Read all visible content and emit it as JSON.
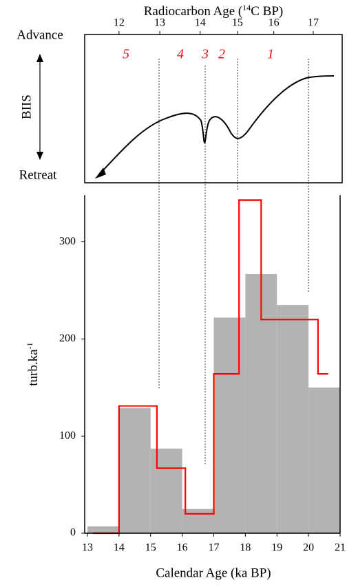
{
  "chart_data": {
    "type": "histogram",
    "x2label": {
      "pre": "Radiocarbon Age (",
      "sup": "14",
      "post": "C BP)"
    },
    "x2ticks": [
      {
        "value": 14.0,
        "label": "12"
      },
      {
        "value": 15.29,
        "label": "13"
      },
      {
        "value": 16.57,
        "label": "14"
      },
      {
        "value": 17.75,
        "label": "15"
      },
      {
        "value": 18.9,
        "label": "16"
      },
      {
        "value": 20.15,
        "label": "17"
      }
    ],
    "panel_labels": {
      "top": "Advance",
      "middle": "BIIS",
      "bottom": "Retreat"
    },
    "stages": [
      "5",
      "4",
      "3",
      "2",
      "1"
    ],
    "xlabel": "Calendar Age (ka BP)",
    "ylabel": {
      "base": "turb.ka",
      "sup": "-1"
    },
    "xlim": [
      13,
      21
    ],
    "xticks": [
      13,
      14,
      15,
      16,
      17,
      18,
      19,
      20,
      21
    ],
    "ylim": [
      0,
      348
    ],
    "yticks": [
      0,
      100,
      200,
      300
    ],
    "bins": [
      13,
      14,
      15,
      16,
      17,
      18,
      19,
      20,
      21
    ],
    "counts": [
      7,
      129,
      87,
      25,
      222,
      267,
      235,
      150
    ],
    "color": "#b3b3b3",
    "step": {
      "color": "#ff0000",
      "edges": [
        13.2,
        14,
        15.2,
        16.1,
        17,
        17.8,
        18.5,
        20.3,
        20.6
      ],
      "values": [
        0,
        131,
        67,
        20,
        164,
        343,
        220,
        164
      ]
    }
  }
}
